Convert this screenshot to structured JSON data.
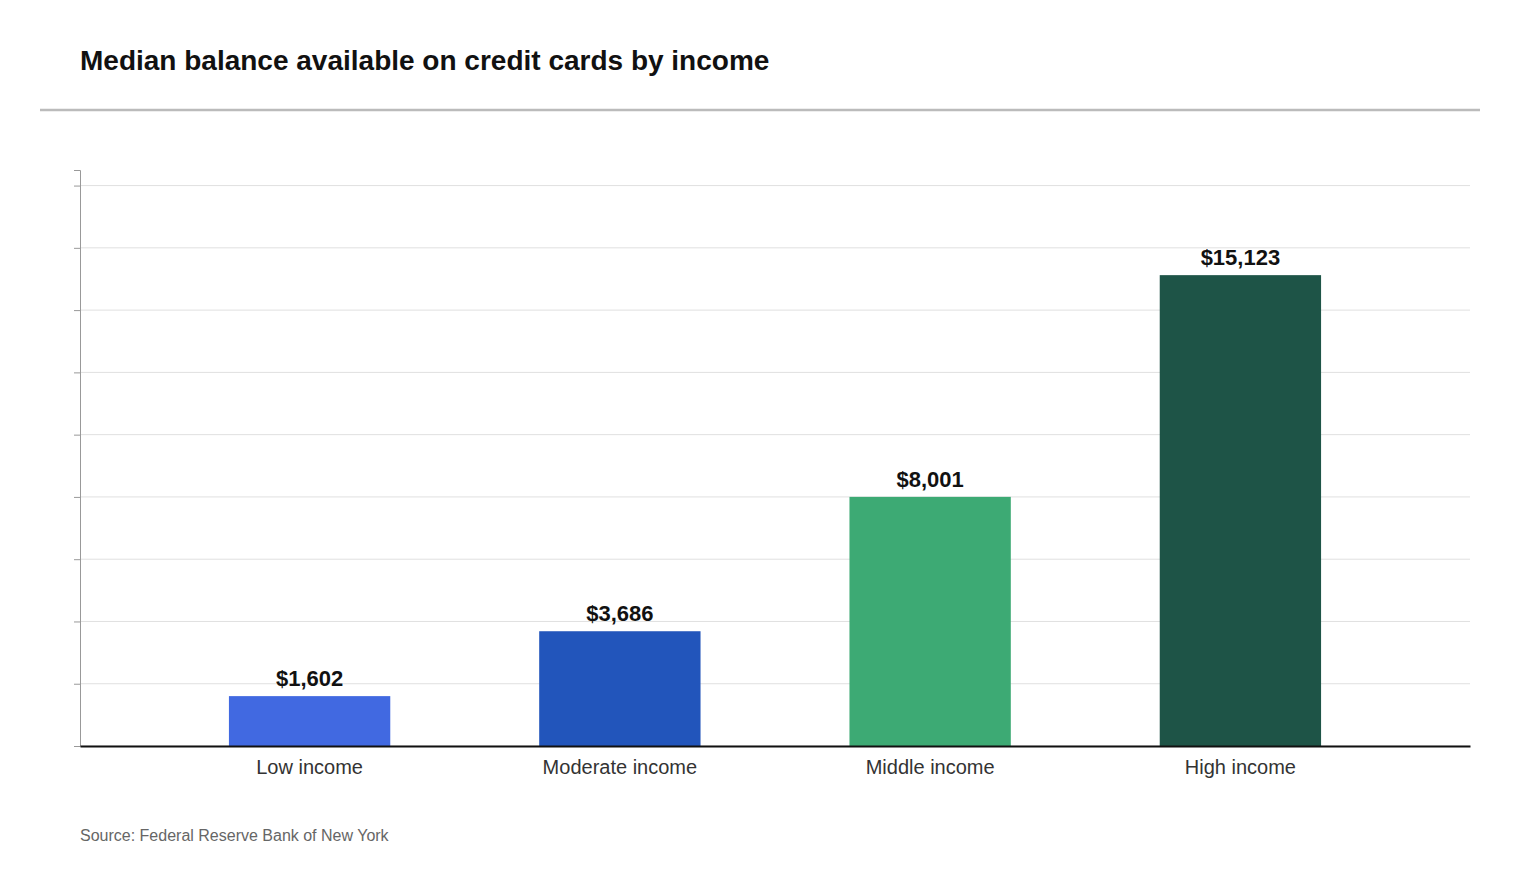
{
  "chart_data": {
    "type": "bar",
    "title": "Median balance available on credit cards by income",
    "categories": [
      "Low income",
      "Moderate income",
      "Middle income",
      "High income"
    ],
    "values": [
      1602,
      3686,
      8001,
      15123
    ],
    "value_labels": [
      "$1,602",
      "$3,686",
      "$8,001",
      "$15,123"
    ],
    "colors": [
      "#4169E1",
      "#2255BB",
      "#3DAA74",
      "#1E5447"
    ],
    "ylim": [
      0,
      18500
    ],
    "yticks": [
      0,
      2000,
      4000,
      6000,
      8000,
      10000,
      12000,
      14000,
      16000,
      18000
    ],
    "grid": true,
    "data_labels": true,
    "tick_labels": "x",
    "annotations": [
      "Source: Federal Reserve Bank of New York"
    ]
  }
}
